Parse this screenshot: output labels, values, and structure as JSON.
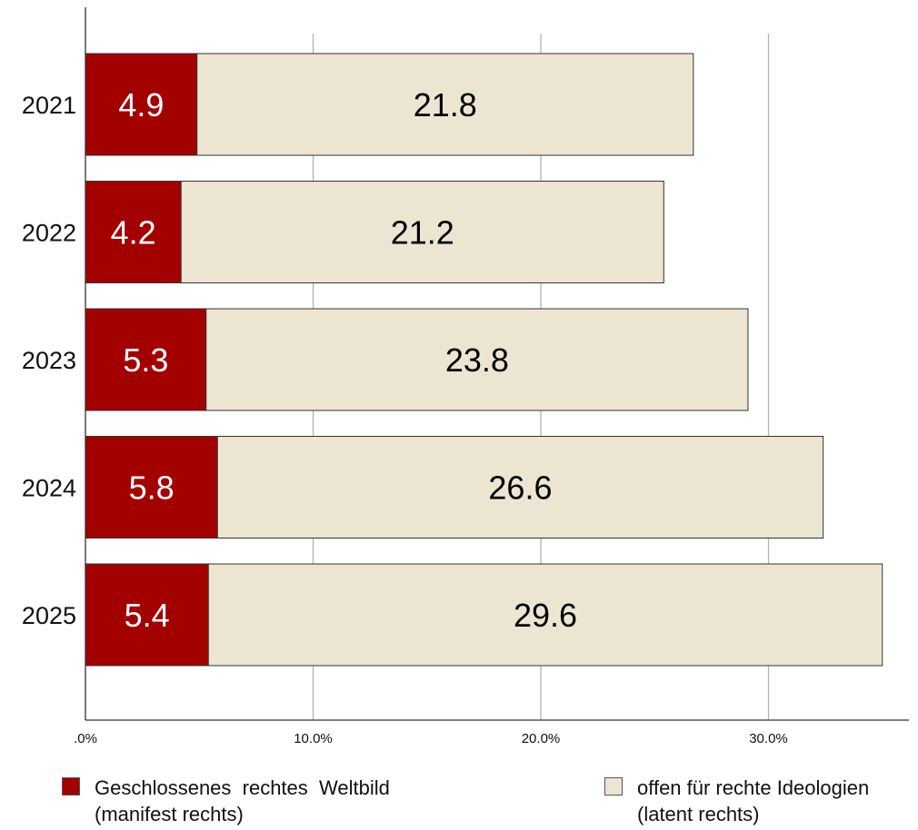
{
  "chart_data": {
    "type": "bar",
    "orientation": "horizontal",
    "stacked": true,
    "categories": [
      "2021",
      "2022",
      "2023",
      "2024",
      "2025"
    ],
    "series": [
      {
        "name": "Geschlossenes rechtes Weltbild (manifest rechts)",
        "values": [
          4.9,
          4.2,
          5.3,
          5.8,
          5.4
        ],
        "color": "#a30000",
        "label_color": "#ffffff"
      },
      {
        "name": "offen für rechte Ideologien (latent rechts)",
        "values": [
          21.8,
          21.2,
          23.8,
          26.6,
          29.6
        ],
        "color": "#ece5d2",
        "label_color": "#000000"
      }
    ],
    "data_labels": [
      [
        "4.9",
        "4.2",
        "5.3",
        "5.8",
        "5.4"
      ],
      [
        "21.8",
        "21.2",
        "23.8",
        "26.6",
        "29.6"
      ]
    ],
    "xlim": [
      0,
      36.5
    ],
    "x_ticks": [
      0,
      10,
      20,
      30
    ],
    "x_tick_labels": [
      ".0%",
      "10.0%",
      "20.0%",
      "30.0%"
    ],
    "grid": "vertical",
    "legend_position": "bottom",
    "title": "",
    "xlabel": "",
    "ylabel": ""
  },
  "legend": [
    {
      "line1": "Geschlossenes  rechtes  Weltbild",
      "line2": "(manifest rechts)",
      "color": "#a30000"
    },
    {
      "line1": "offen für rechte Ideologien",
      "line2": "(latent rechts)",
      "color": "#ece5d2"
    }
  ]
}
